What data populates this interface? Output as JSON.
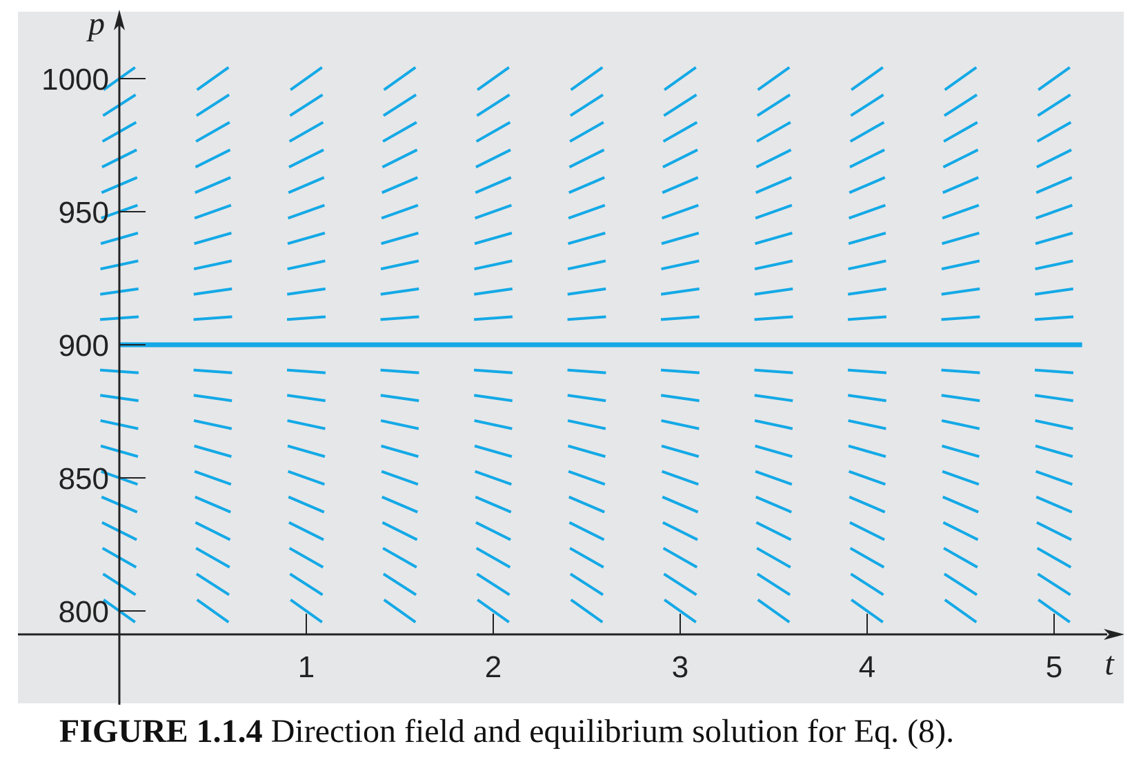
{
  "chart_data": {
    "type": "direction-field",
    "xlabel": "t",
    "ylabel": "p",
    "xlim": [
      0,
      5.4
    ],
    "ylim": [
      791,
      1016
    ],
    "x_ticks": [
      1,
      2,
      3,
      4,
      5
    ],
    "x_tick_labels": [
      "1",
      "2",
      "3",
      "4",
      "5"
    ],
    "y_ticks": [
      800,
      850,
      900,
      950,
      1000
    ],
    "y_tick_labels": [
      "800",
      "850",
      "900",
      "950",
      "1000"
    ],
    "grid": false,
    "field": {
      "t_values": [
        0,
        0.5,
        1,
        1.5,
        2,
        2.5,
        3,
        3.5,
        4,
        4.5,
        5
      ],
      "p_values": [
        800,
        810,
        820,
        830,
        840,
        850,
        860,
        870,
        880,
        890,
        910,
        920,
        930,
        940,
        950,
        960,
        970,
        980,
        990,
        1000
      ],
      "slope_rate": 0.5,
      "equilibrium": 900
    },
    "equilibrium_solution": {
      "p": 900,
      "t_range": [
        0,
        5.15
      ]
    }
  },
  "caption": {
    "label": "FIGURE 1.1.4",
    "text": "Direction field and equilibrium solution for Eq. (8)."
  },
  "colors": {
    "plot_background": "#e6e7e9",
    "field_segment": "#14a9e6",
    "equilibrium_line": "#14a9e6",
    "axis": "#222222"
  }
}
